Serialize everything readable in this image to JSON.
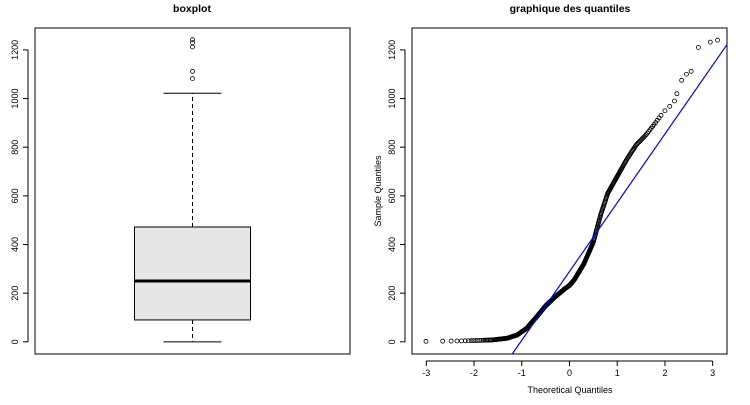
{
  "chart_data": [
    {
      "type": "boxplot",
      "title": "boxplot",
      "xlabel": "",
      "ylabel": "",
      "ylim": [
        -50,
        1290
      ],
      "yticks": [
        0,
        200,
        400,
        600,
        800,
        1000,
        1200
      ],
      "stats": {
        "min": 0,
        "q1": 90,
        "median": 250,
        "q3": 472,
        "whisker_high": 1022
      },
      "outliers": [
        1082,
        1112,
        1212,
        1230,
        1242
      ],
      "fill_color": "#e6e6e6"
    },
    {
      "type": "scatter",
      "title": "graphique des quantiles",
      "xlabel": "Theoretical Quantiles",
      "ylabel": "Sample Quantiles",
      "xlim": [
        -3.3,
        3.3
      ],
      "ylim": [
        -50,
        1290
      ],
      "xticks": [
        -3,
        -2,
        -1,
        0,
        1,
        2,
        3
      ],
      "yticks": [
        0,
        200,
        400,
        600,
        800,
        1000,
        1200
      ],
      "qq_curve": {
        "x": [
          -3.1,
          -2.5,
          -2.0,
          -1.6,
          -1.3,
          -1.1,
          -0.9,
          -0.7,
          -0.5,
          -0.3,
          -0.1,
          0.0,
          0.1,
          0.3,
          0.5,
          0.65,
          0.8,
          1.0,
          1.2,
          1.4,
          1.6,
          1.8,
          1.95
        ],
        "y": [
          2,
          3,
          5,
          8,
          15,
          28,
          55,
          100,
          148,
          185,
          218,
          232,
          255,
          320,
          410,
          520,
          610,
          680,
          750,
          810,
          850,
          900,
          940
        ]
      },
      "qq_tail": {
        "x": [
          2.0,
          2.1,
          2.2,
          2.25,
          2.35,
          2.45,
          2.55,
          2.7,
          2.95,
          3.1
        ],
        "y": [
          950,
          968,
          990,
          1020,
          1075,
          1100,
          1112,
          1210,
          1232,
          1240
        ]
      },
      "qq_line": {
        "x": [
          -1.2,
          3.3
        ],
        "y": [
          -50,
          1222
        ]
      },
      "line_color": "#0000ff"
    }
  ]
}
